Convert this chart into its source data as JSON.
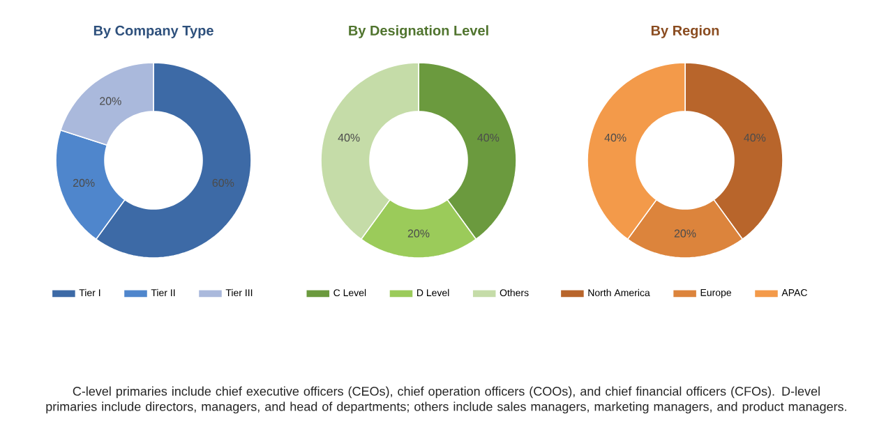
{
  "chart_data": [
    {
      "type": "donut",
      "title": "By Company Type",
      "categories": [
        "Tier I",
        "Tier II",
        "Tier III"
      ],
      "values": [
        60,
        20,
        20
      ],
      "value_labels": [
        "60%",
        "20%",
        "20%"
      ],
      "colors": [
        "#3d6aa6",
        "#4f86cc",
        "#aab9dc"
      ],
      "legend": "bottom"
    },
    {
      "type": "donut",
      "title": "By Designation Level",
      "categories": [
        "C Level",
        "D Level",
        "Others"
      ],
      "values": [
        40,
        20,
        40
      ],
      "value_labels": [
        "40%",
        "20%",
        "40%"
      ],
      "colors": [
        "#6b9a3e",
        "#9bcb5a",
        "#c5dca8"
      ],
      "legend": "bottom"
    },
    {
      "type": "donut",
      "title": "By Region",
      "categories": [
        "North America",
        "Europe",
        "APAC"
      ],
      "values": [
        40,
        20,
        40
      ],
      "value_labels": [
        "40%",
        "20%",
        "40%"
      ],
      "colors": [
        "#b8652b",
        "#dc843c",
        "#f39a4a"
      ],
      "legend": "bottom"
    },
    {
      "type": "other",
      "annotations": [
        "C-level primaries include chief executive officers (CEOs), chief operation officers (COOs), and chief financial officers (CFOs). D-level primaries include directors, managers, and head of departments; others include sales managers, marketing managers, and product managers."
      ]
    }
  ]
}
